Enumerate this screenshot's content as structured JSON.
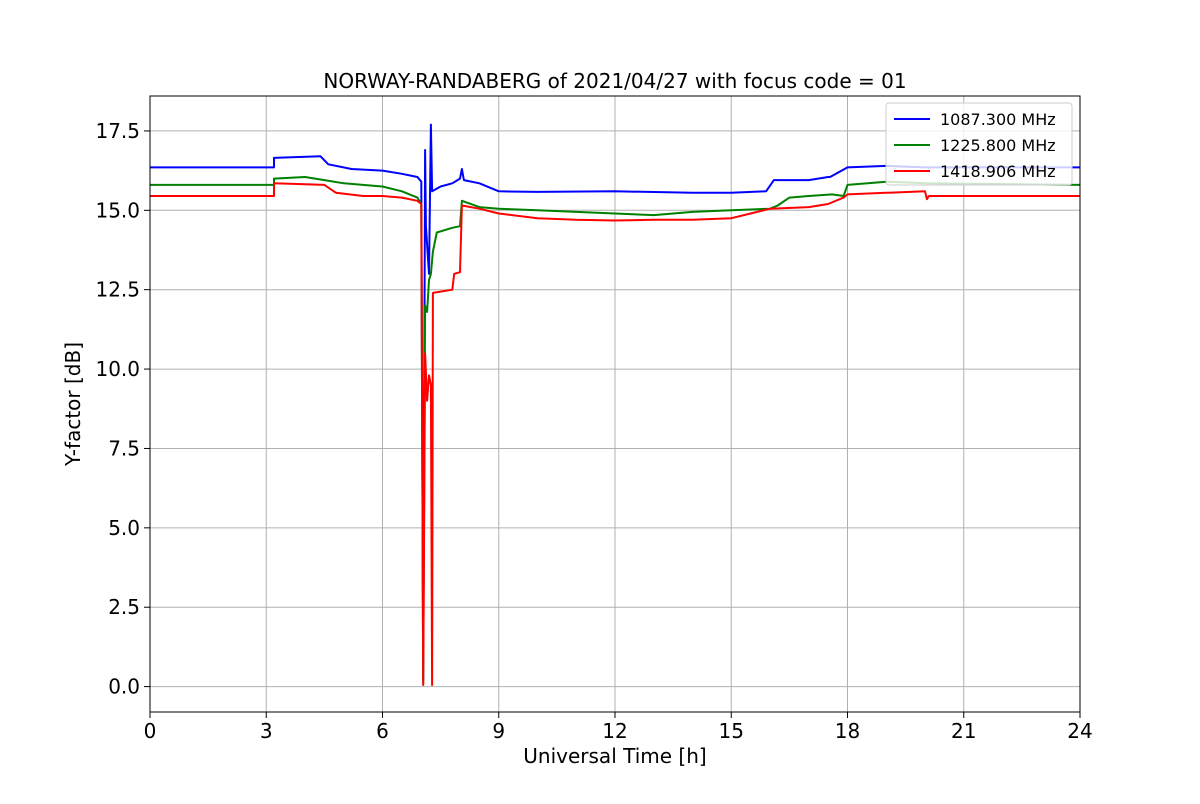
{
  "chart_data": {
    "type": "line",
    "title": "NORWAY-RANDABERG of 2021/04/27 with focus code = 01",
    "xlabel": "Universal Time [h]",
    "ylabel": "Y-factor [dB]",
    "xlim": [
      0,
      24
    ],
    "ylim": [
      -0.8,
      18.6
    ],
    "xticks": [
      0,
      3,
      6,
      9,
      12,
      15,
      18,
      21,
      24
    ],
    "xtick_labels": [
      "0",
      "3",
      "6",
      "9",
      "12",
      "15",
      "18",
      "21",
      "24"
    ],
    "yticks": [
      0,
      2.5,
      5,
      7.5,
      10,
      12.5,
      15,
      17.5
    ],
    "ytick_labels": [
      "0.0",
      "2.5",
      "5.0",
      "7.5",
      "10.0",
      "12.5",
      "15.0",
      "17.5"
    ],
    "grid": true,
    "legend_position": "top-right",
    "series": [
      {
        "name": "1087.300 MHz",
        "color": "#0000ff",
        "points": [
          [
            0,
            16.35
          ],
          [
            3.2,
            16.35
          ],
          [
            3.2,
            16.65
          ],
          [
            4.4,
            16.7
          ],
          [
            4.6,
            16.45
          ],
          [
            5.2,
            16.3
          ],
          [
            6.0,
            16.25
          ],
          [
            6.5,
            16.15
          ],
          [
            6.9,
            16.05
          ],
          [
            7.0,
            15.9
          ],
          [
            7.05,
            0.2
          ],
          [
            7.1,
            16.9
          ],
          [
            7.12,
            14.5
          ],
          [
            7.2,
            13.0
          ],
          [
            7.25,
            17.7
          ],
          [
            7.28,
            15.6
          ],
          [
            7.5,
            15.75
          ],
          [
            7.8,
            15.85
          ],
          [
            8.0,
            16.0
          ],
          [
            8.05,
            16.3
          ],
          [
            8.1,
            15.95
          ],
          [
            8.5,
            15.85
          ],
          [
            9.0,
            15.6
          ],
          [
            10.0,
            15.58
          ],
          [
            12.0,
            15.6
          ],
          [
            14.0,
            15.55
          ],
          [
            15.0,
            15.55
          ],
          [
            15.9,
            15.6
          ],
          [
            16.1,
            15.95
          ],
          [
            17.0,
            15.95
          ],
          [
            17.5,
            16.05
          ],
          [
            17.55,
            16.05
          ],
          [
            18.0,
            16.35
          ],
          [
            19.0,
            16.4
          ],
          [
            20.0,
            16.35
          ],
          [
            21.0,
            16.35
          ],
          [
            24.0,
            16.35
          ]
        ]
      },
      {
        "name": "1225.800 MHz",
        "color": "#008000",
        "points": [
          [
            0,
            15.8
          ],
          [
            3.2,
            15.8
          ],
          [
            3.2,
            16.0
          ],
          [
            4.0,
            16.05
          ],
          [
            4.5,
            15.95
          ],
          [
            5.0,
            15.85
          ],
          [
            6.0,
            15.75
          ],
          [
            6.5,
            15.6
          ],
          [
            6.9,
            15.4
          ],
          [
            7.0,
            15.2
          ],
          [
            7.05,
            0.1
          ],
          [
            7.1,
            12.0
          ],
          [
            7.15,
            11.8
          ],
          [
            7.2,
            12.8
          ],
          [
            7.25,
            13.0
          ],
          [
            7.3,
            13.7
          ],
          [
            7.4,
            14.3
          ],
          [
            7.8,
            14.45
          ],
          [
            8.0,
            14.5
          ],
          [
            8.05,
            15.3
          ],
          [
            8.5,
            15.1
          ],
          [
            9.0,
            15.05
          ],
          [
            10.0,
            15.0
          ],
          [
            11.0,
            14.95
          ],
          [
            12.0,
            14.9
          ],
          [
            13.0,
            14.85
          ],
          [
            14.0,
            14.95
          ],
          [
            15.0,
            15.0
          ],
          [
            16.0,
            15.05
          ],
          [
            16.2,
            15.15
          ],
          [
            16.5,
            15.4
          ],
          [
            17.0,
            15.45
          ],
          [
            17.6,
            15.5
          ],
          [
            17.9,
            15.45
          ],
          [
            18.0,
            15.8
          ],
          [
            19.0,
            15.9
          ],
          [
            20.0,
            15.85
          ],
          [
            24.0,
            15.8
          ]
        ]
      },
      {
        "name": "1418.906 MHz",
        "color": "#ff0000",
        "points": [
          [
            0,
            15.45
          ],
          [
            3.2,
            15.45
          ],
          [
            3.2,
            15.85
          ],
          [
            4.5,
            15.8
          ],
          [
            4.8,
            15.55
          ],
          [
            5.5,
            15.45
          ],
          [
            6.0,
            15.45
          ],
          [
            6.5,
            15.4
          ],
          [
            6.9,
            15.3
          ],
          [
            7.0,
            15.2
          ],
          [
            7.05,
            0.05
          ],
          [
            7.1,
            10.5
          ],
          [
            7.15,
            9.0
          ],
          [
            7.2,
            9.8
          ],
          [
            7.25,
            9.5
          ],
          [
            7.28,
            0.05
          ],
          [
            7.3,
            12.4
          ],
          [
            7.8,
            12.5
          ],
          [
            7.85,
            13.0
          ],
          [
            8.0,
            13.05
          ],
          [
            8.05,
            15.15
          ],
          [
            8.5,
            15.05
          ],
          [
            9.0,
            14.9
          ],
          [
            10.0,
            14.75
          ],
          [
            11.0,
            14.7
          ],
          [
            12.0,
            14.68
          ],
          [
            13.0,
            14.7
          ],
          [
            14.0,
            14.7
          ],
          [
            15.0,
            14.75
          ],
          [
            15.5,
            14.9
          ],
          [
            16.0,
            15.05
          ],
          [
            17.0,
            15.1
          ],
          [
            17.5,
            15.2
          ],
          [
            17.9,
            15.4
          ],
          [
            18.0,
            15.5
          ],
          [
            19.0,
            15.55
          ],
          [
            20.0,
            15.6
          ],
          [
            20.05,
            15.35
          ],
          [
            20.1,
            15.45
          ],
          [
            24.0,
            15.45
          ]
        ]
      }
    ]
  }
}
